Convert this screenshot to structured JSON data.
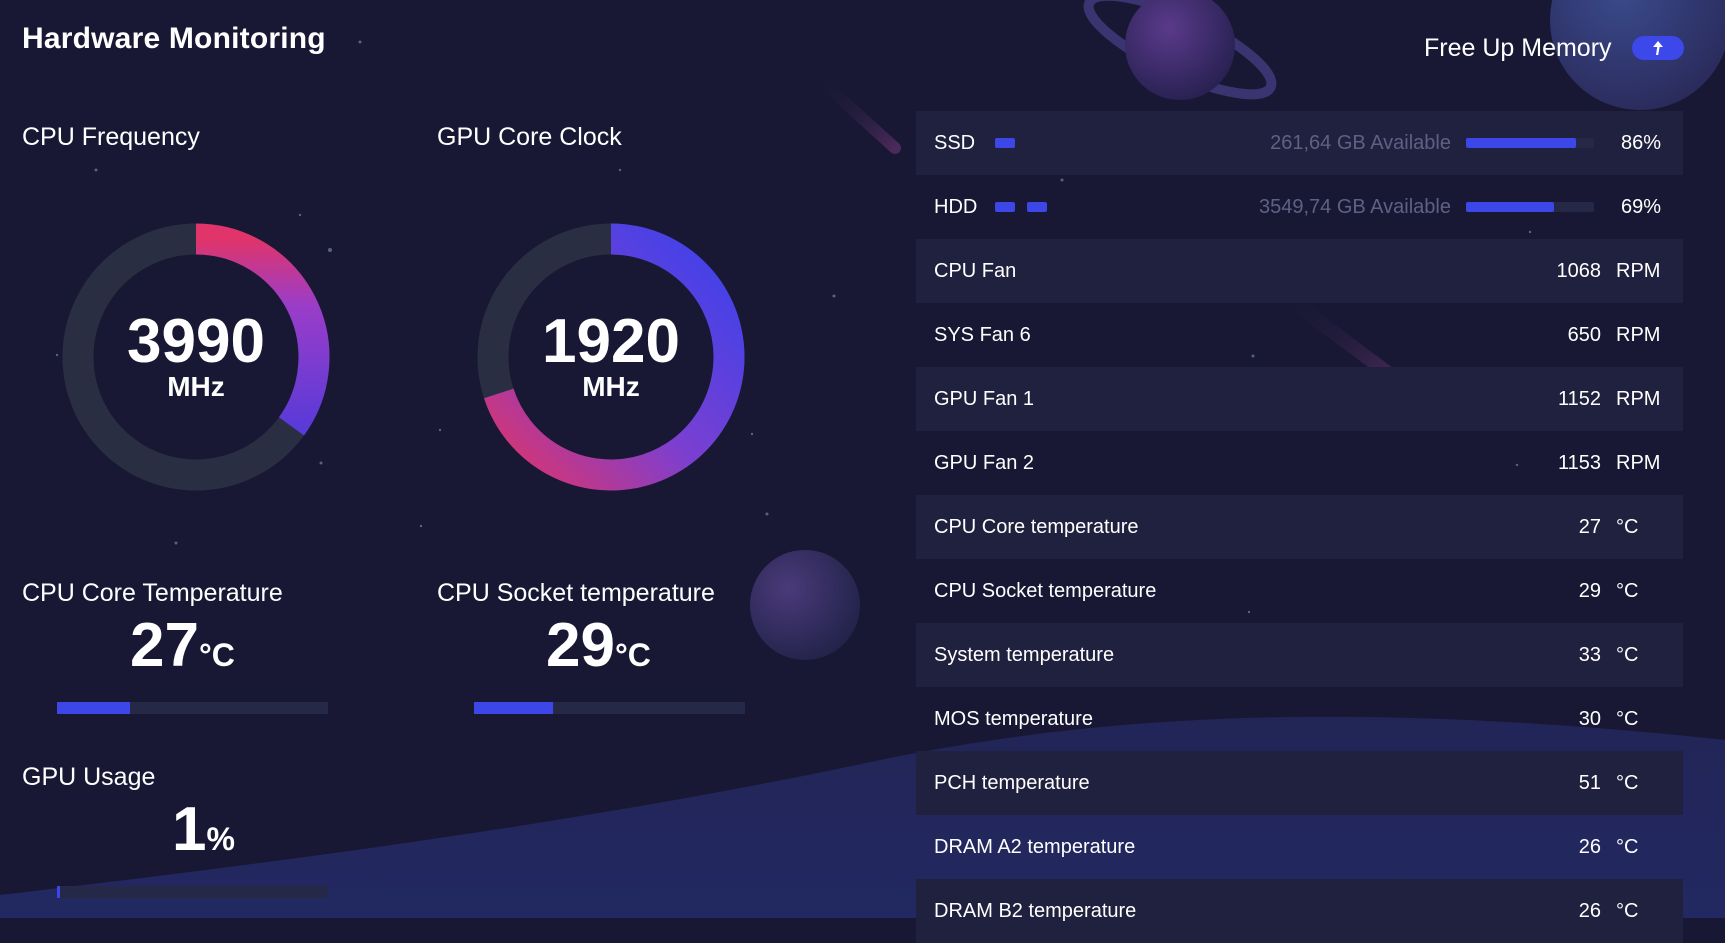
{
  "app_title": "Hardware Monitoring",
  "free_memory": {
    "label": "Free Up Memory",
    "icon": "arrow-up-icon"
  },
  "cpu_frequency": {
    "label": "CPU Frequency",
    "value": "3990",
    "unit": "MHz",
    "fraction": 0.35
  },
  "gpu_core_clock": {
    "label": "GPU Core Clock",
    "value": "1920",
    "unit": "MHz",
    "fraction": 0.7
  },
  "cpu_core_temp": {
    "label": "CPU Core Temperature",
    "value": "27",
    "unit": "°C",
    "fraction": 0.27
  },
  "cpu_socket_temp": {
    "label": "CPU Socket temperature",
    "value": "29",
    "unit": "°C",
    "fraction": 0.29
  },
  "gpu_usage": {
    "label": "GPU Usage",
    "value": "1",
    "unit": "%",
    "fraction": 0.01
  },
  "drives": [
    {
      "name": "SSD",
      "available": "261,64 GB Available",
      "percent": "86%",
      "fraction": 0.86,
      "icon_count": 1
    },
    {
      "name": "HDD",
      "available": "3549,74 GB Available",
      "percent": "69%",
      "fraction": 0.69,
      "icon_count": 2
    }
  ],
  "sensors": [
    {
      "name": "CPU Fan",
      "value": "1068",
      "unit": "RPM"
    },
    {
      "name": "SYS Fan 6",
      "value": "650",
      "unit": "RPM"
    },
    {
      "name": "GPU Fan 1",
      "value": "1152",
      "unit": "RPM"
    },
    {
      "name": "GPU Fan 2",
      "value": "1153",
      "unit": "RPM"
    },
    {
      "name": "CPU Core temperature",
      "value": "27",
      "unit": "°C"
    },
    {
      "name": "CPU Socket temperature",
      "value": "29",
      "unit": "°C"
    },
    {
      "name": "System temperature",
      "value": "33",
      "unit": "°C"
    },
    {
      "name": "MOS temperature",
      "value": "30",
      "unit": "°C"
    },
    {
      "name": "PCH temperature",
      "value": "51",
      "unit": "°C"
    },
    {
      "name": "DRAM A2 temperature",
      "value": "26",
      "unit": "°C"
    },
    {
      "name": "DRAM B2 temperature",
      "value": "26",
      "unit": "°C"
    }
  ],
  "colors": {
    "background": "#181834",
    "accent_blue": "#3d46e6",
    "accent_pink": "#e0346a",
    "accent_purple": "#7b3fd0",
    "track": "#2a2e42",
    "row_alt": "#20203f"
  }
}
